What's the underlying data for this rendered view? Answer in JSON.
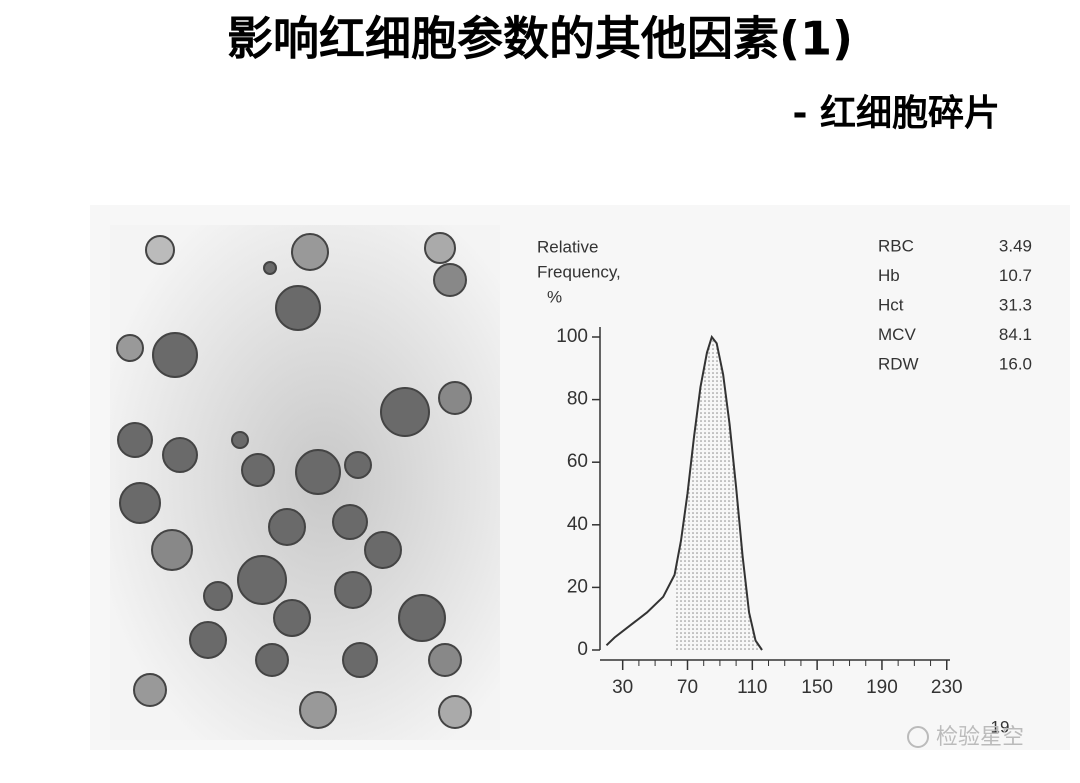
{
  "title": "影响红细胞参数的其他因素(1)",
  "subtitle": "- 红细胞碎片",
  "lab_values": {
    "rows": [
      [
        "RBC",
        "3.49"
      ],
      [
        "Hb",
        "10.7"
      ],
      [
        "Hct",
        "31.3"
      ],
      [
        "MCV",
        "84.1"
      ],
      [
        "RDW",
        "16.0"
      ]
    ]
  },
  "page_number": "19",
  "watermark": "检验星空",
  "chart_data": {
    "type": "area",
    "ylabel": [
      "Relative",
      "Frequency,",
      "%"
    ],
    "x": [
      20,
      25,
      35,
      45,
      55,
      62,
      66,
      70,
      74,
      78,
      82,
      85,
      88,
      92,
      96,
      100,
      104,
      108,
      112,
      116
    ],
    "values": [
      1.5,
      4,
      8,
      12,
      17,
      24,
      35,
      50,
      68,
      84,
      95,
      100,
      98,
      88,
      72,
      52,
      30,
      12,
      3,
      0
    ],
    "color": "#333333",
    "highlight_from": 62,
    "xlim": [
      16,
      232
    ],
    "ylim": [
      0,
      100
    ],
    "xticks": [
      30,
      70,
      110,
      150,
      190,
      230
    ],
    "xminor_ticks": [
      40,
      50,
      60,
      80,
      90,
      100,
      120,
      130,
      140,
      160,
      170,
      180,
      200,
      210,
      220
    ],
    "yticks": [
      0,
      20,
      40,
      60,
      80,
      100
    ]
  }
}
